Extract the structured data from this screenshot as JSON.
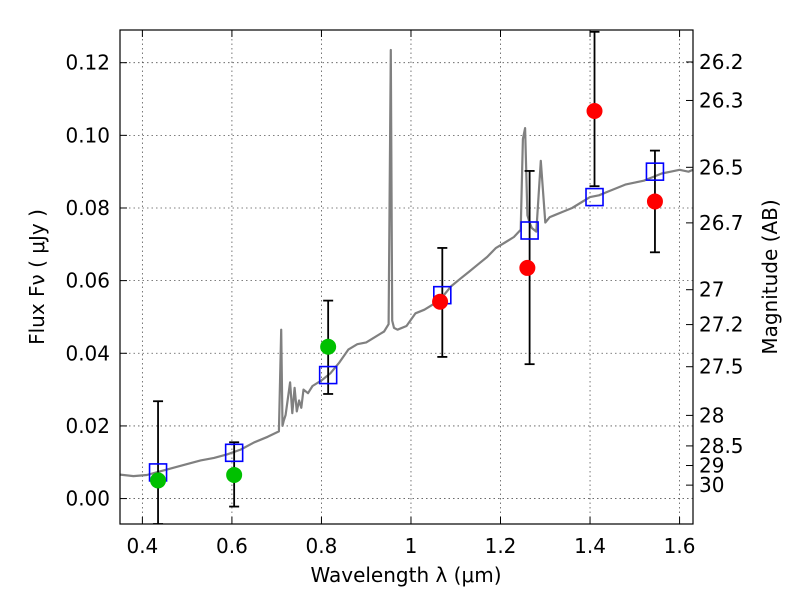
{
  "chart_data": {
    "type": "scatter",
    "xlabel": "Wavelength  λ (μm)",
    "ylabel": "Flux  Fν  ( μJy )",
    "y2label": "Magnitude (AB)",
    "xlim": [
      0.35,
      1.63
    ],
    "ylim": [
      -0.007,
      0.129
    ],
    "grid": true,
    "x_ticks": [
      0.4,
      0.6,
      0.8,
      1.0,
      1.2,
      1.4,
      1.6
    ],
    "x_tick_labels": [
      "0.4",
      "0.6",
      "0.8",
      "1",
      "1.2",
      "1.4",
      "1.6"
    ],
    "y_ticks": [
      0.0,
      0.02,
      0.04,
      0.06,
      0.08,
      0.1,
      0.12
    ],
    "y_tick_labels": [
      "0.00",
      "0.02",
      "0.04",
      "0.06",
      "0.08",
      "0.10",
      "0.12"
    ],
    "y2_ticks": [
      {
        "flux": 0.1202,
        "label": "26.2"
      },
      {
        "flux": 0.1096,
        "label": "26.3"
      },
      {
        "flux": 0.0912,
        "label": "26.5"
      },
      {
        "flux": 0.0759,
        "label": "26.7"
      },
      {
        "flux": 0.0575,
        "label": "27"
      },
      {
        "flux": 0.0479,
        "label": "27.2"
      },
      {
        "flux": 0.0363,
        "label": "27.5"
      },
      {
        "flux": 0.0229,
        "label": "28"
      },
      {
        "flux": 0.0145,
        "label": "28.5"
      },
      {
        "flux": 0.0091,
        "label": "29"
      },
      {
        "flux": 0.0037,
        "label": "30"
      }
    ],
    "series": [
      {
        "type": "line",
        "color": "#808080",
        "x": [
          0.35,
          0.38,
          0.41,
          0.44,
          0.47,
          0.5,
          0.53,
          0.56,
          0.59,
          0.62,
          0.65,
          0.68,
          0.705,
          0.71,
          0.713,
          0.716,
          0.72,
          0.73,
          0.735,
          0.74,
          0.745,
          0.75,
          0.755,
          0.76,
          0.77,
          0.78,
          0.8,
          0.82,
          0.84,
          0.86,
          0.88,
          0.9,
          0.92,
          0.94,
          0.95,
          0.955,
          0.958,
          0.962,
          0.97,
          0.99,
          1.01,
          1.03,
          1.05,
          1.07,
          1.09,
          1.11,
          1.13,
          1.15,
          1.17,
          1.19,
          1.21,
          1.23,
          1.245,
          1.25,
          1.255,
          1.26,
          1.265,
          1.27,
          1.28,
          1.29,
          1.3,
          1.31,
          1.32,
          1.34,
          1.36,
          1.38,
          1.4,
          1.42,
          1.44,
          1.46,
          1.48,
          1.5,
          1.52,
          1.54,
          1.56,
          1.58,
          1.6,
          1.62,
          1.63
        ],
        "y": [
          0.0066,
          0.0062,
          0.0065,
          0.0075,
          0.0085,
          0.0095,
          0.0105,
          0.0112,
          0.0122,
          0.0135,
          0.0155,
          0.017,
          0.0185,
          0.0465,
          0.02,
          0.0215,
          0.023,
          0.032,
          0.0235,
          0.0305,
          0.024,
          0.027,
          0.025,
          0.03,
          0.029,
          0.031,
          0.0325,
          0.0345,
          0.0375,
          0.041,
          0.0425,
          0.043,
          0.0445,
          0.046,
          0.048,
          0.1235,
          0.049,
          0.047,
          0.0465,
          0.0475,
          0.051,
          0.052,
          0.0535,
          0.0555,
          0.0585,
          0.0605,
          0.0625,
          0.0645,
          0.0665,
          0.069,
          0.0705,
          0.072,
          0.074,
          0.099,
          0.102,
          0.078,
          0.076,
          0.0745,
          0.0735,
          0.093,
          0.076,
          0.0775,
          0.078,
          0.079,
          0.08,
          0.0815,
          0.083,
          0.0835,
          0.0845,
          0.0855,
          0.0865,
          0.087,
          0.0875,
          0.0885,
          0.0895,
          0.09,
          0.0905,
          0.09,
          0.0905
        ]
      },
      {
        "type": "scatter",
        "marker": "square",
        "color": "#0000ff",
        "points": [
          {
            "x": 0.435,
            "y": 0.0072
          },
          {
            "x": 0.605,
            "y": 0.0126
          },
          {
            "x": 0.815,
            "y": 0.034
          },
          {
            "x": 1.07,
            "y": 0.056
          },
          {
            "x": 1.265,
            "y": 0.0738
          },
          {
            "x": 1.41,
            "y": 0.083
          },
          {
            "x": 1.545,
            "y": 0.09
          }
        ]
      },
      {
        "type": "scatter",
        "marker": "circle",
        "color": "#00c000",
        "points": [
          {
            "x": 0.435,
            "y": 0.005
          },
          {
            "x": 0.605,
            "y": 0.0065
          },
          {
            "x": 0.815,
            "y": 0.0418
          }
        ]
      },
      {
        "type": "scatter",
        "marker": "circle",
        "color": "#ff0000",
        "points": [
          {
            "x": 1.065,
            "y": 0.0542
          },
          {
            "x": 1.26,
            "y": 0.0635
          },
          {
            "x": 1.41,
            "y": 0.1067
          },
          {
            "x": 1.545,
            "y": 0.0818
          }
        ]
      }
    ],
    "error_bars": [
      {
        "x": 0.435,
        "y_low": -0.007,
        "y_high": 0.0268
      },
      {
        "x": 0.605,
        "y_low": -0.0022,
        "y_high": 0.0155
      },
      {
        "x": 0.815,
        "y_low": 0.0288,
        "y_high": 0.0545
      },
      {
        "x": 1.07,
        "y_low": 0.039,
        "y_high": 0.069
      },
      {
        "x": 1.265,
        "y_low": 0.037,
        "y_high": 0.0902
      },
      {
        "x": 1.41,
        "y_low": 0.086,
        "y_high": 0.1285
      },
      {
        "x": 1.545,
        "y_low": 0.0678,
        "y_high": 0.0958
      }
    ]
  }
}
